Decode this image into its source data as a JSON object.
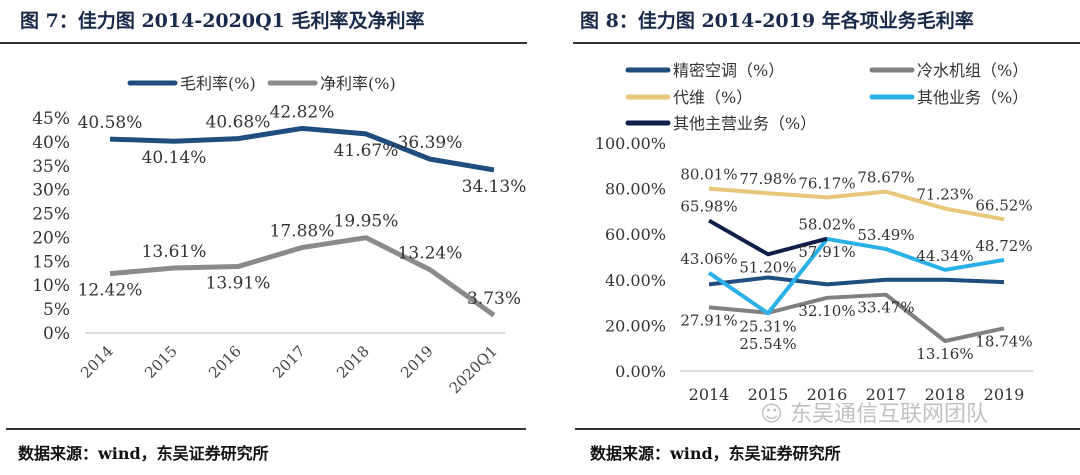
{
  "panels": [
    {
      "title": "图 7：佳力图 2014-2020Q1 毛利率及净利率",
      "source": "数据来源：wind，东吴证券研究所"
    },
    {
      "title": "图 8：佳力图 2014-2019 年各项业务毛利率",
      "source": "数据来源：wind，东吴证券研究所"
    }
  ],
  "watermark": "东吴通信互联网团队",
  "chart_data": [
    {
      "type": "line",
      "categories": [
        "2014",
        "2015",
        "2016",
        "2017",
        "2018",
        "2019",
        "2020Q1"
      ],
      "yticks": [
        "0%",
        "5%",
        "10%",
        "15%",
        "20%",
        "25%",
        "30%",
        "35%",
        "40%",
        "45%"
      ],
      "ylim": [
        0,
        45
      ],
      "legend_position": "top",
      "grid": false,
      "series": [
        {
          "name": "毛利率(%)",
          "color": "#1f4e7e",
          "values": [
            40.58,
            40.14,
            40.68,
            42.82,
            41.67,
            36.39,
            34.13
          ],
          "labels": [
            "40.58%",
            "40.14%",
            "40.68%",
            "42.82%",
            "41.67%",
            "36.39%",
            "34.13%"
          ]
        },
        {
          "name": "净利率(%)",
          "color": "#8a8a8a",
          "values": [
            12.42,
            13.61,
            13.91,
            17.88,
            19.95,
            13.24,
            3.73
          ],
          "labels": [
            "12.42%",
            "13.61%",
            "13.91%",
            "17.88%",
            "19.95%",
            "13.24%",
            "3.73%"
          ]
        }
      ]
    },
    {
      "type": "line",
      "categories": [
        "2014",
        "2015",
        "2016",
        "2017",
        "2018",
        "2019"
      ],
      "yticks": [
        "0.00%",
        "20.00%",
        "40.00%",
        "60.00%",
        "80.00%",
        "100.00%"
      ],
      "ylim": [
        0,
        100
      ],
      "legend_position": "top",
      "grid": false,
      "series": [
        {
          "name": "精密空调（%）",
          "color": "#1f4e7e",
          "values": [
            38,
            41,
            38,
            40,
            40,
            39
          ],
          "labels": []
        },
        {
          "name": "冷水机组（%）",
          "color": "#808080",
          "values": [
            27.91,
            25.54,
            32.1,
            33.47,
            13.16,
            18.74
          ],
          "labels": [
            "27.91%",
            "25.54%",
            "32.10%",
            "33.47%",
            "13.16%",
            "18.74%"
          ]
        },
        {
          "name": "代维（%）",
          "color": "#e8c77a",
          "values": [
            80.01,
            77.98,
            76.17,
            78.67,
            71.23,
            66.52
          ],
          "labels": [
            "80.01%",
            "77.98%",
            "76.17%",
            "78.67%",
            "71.23%",
            "66.52%"
          ]
        },
        {
          "name": "其他业务（%）",
          "color": "#29b0e6",
          "values": [
            43.06,
            25.31,
            57.91,
            53.49,
            44.34,
            48.72
          ],
          "labels": [
            "43.06%",
            "25.31%",
            "57.91%",
            "53.49%",
            "44.34%",
            "48.72%"
          ]
        },
        {
          "name": "其他主营业务（%）",
          "color": "#0f1f4a",
          "values": [
            65.98,
            51.2,
            58.02,
            null,
            null,
            null
          ],
          "labels": [
            "65.98%",
            "51.20%",
            "58.02%"
          ]
        }
      ]
    }
  ]
}
